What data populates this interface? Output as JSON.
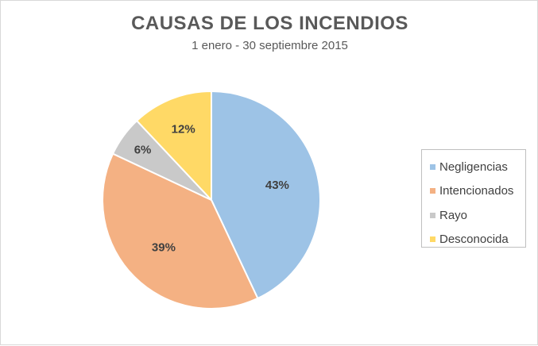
{
  "chart_data": {
    "type": "pie",
    "title": "CAUSAS DE LOS INCENDIOS",
    "subtitle": "1 enero - 30 septiembre 2015",
    "categories": [
      "Negligencias",
      "Intencionados",
      "Rayo",
      "Desconocida"
    ],
    "values": [
      43,
      39,
      6,
      12
    ],
    "data_labels": [
      "43%",
      "39%",
      "6%",
      "12%"
    ],
    "colors": [
      "#9dc3e6",
      "#f4b183",
      "#c9c9c9",
      "#ffd966"
    ],
    "legend": "right"
  }
}
